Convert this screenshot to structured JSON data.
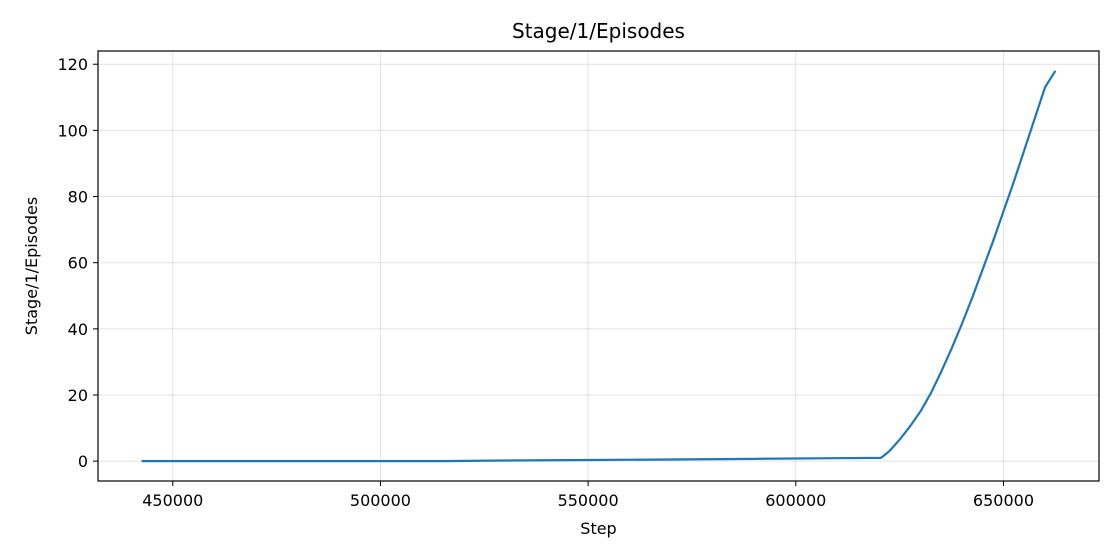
{
  "chart_data": {
    "type": "line",
    "title": "Stage/1/Episodes",
    "xlabel": "Step",
    "ylabel": "Stage/1/Episodes",
    "xlim": [
      432000,
      673000
    ],
    "ylim": [
      -6,
      124
    ],
    "xticks": [
      450000,
      500000,
      550000,
      600000,
      650000
    ],
    "yticks": [
      0,
      20,
      40,
      60,
      80,
      100,
      120
    ],
    "grid": true,
    "series": [
      {
        "color": "#1f77b4",
        "x": [
          442500,
          460000,
          480000,
          500000,
          515000,
          530000,
          550000,
          570000,
          590000,
          610000,
          620500,
          622500,
          625000,
          627500,
          630000,
          632500,
          635000,
          637500,
          640000,
          642500,
          645000,
          647500,
          650000,
          652500,
          655000,
          657500,
          660000,
          662500
        ],
        "y": [
          0,
          0,
          0,
          0,
          0,
          0.2,
          0.35,
          0.5,
          0.7,
          0.9,
          1.0,
          3.0,
          6.5,
          10.5,
          15.0,
          20.5,
          27.0,
          34.0,
          41.5,
          49.5,
          58.0,
          66.5,
          75.5,
          84.5,
          94.0,
          103.5,
          113.0,
          118.0
        ]
      }
    ]
  }
}
